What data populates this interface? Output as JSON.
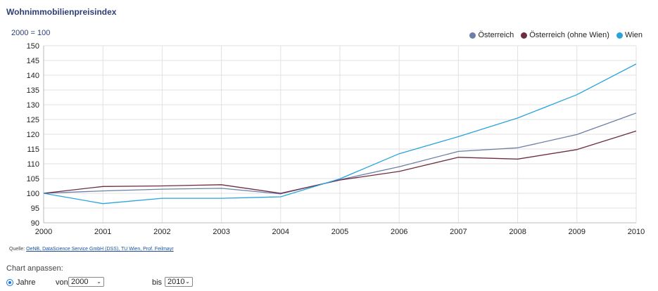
{
  "title": "Wohnimmobilienpreisindex",
  "unit_label": "2000 = 100",
  "colors": {
    "oesterreich": "#6b7fa8",
    "ohne_wien": "#6e2c43",
    "wien": "#29a3dc",
    "grid": "#e2e2e2",
    "axis": "#cccccc"
  },
  "chart_data": {
    "type": "line",
    "x": [
      "2000",
      "2001",
      "2002",
      "2003",
      "2004",
      "2005",
      "2006",
      "2007",
      "2008",
      "2009",
      "2010"
    ],
    "series": [
      {
        "name": "Österreich",
        "color": "#6b7fa8",
        "values": [
          100,
          100.8,
          101.4,
          101.7,
          99.8,
          104.6,
          109.0,
          114.2,
          115.4,
          119.9,
          127.2
        ]
      },
      {
        "name": "Österreich (ohne Wien)",
        "color": "#6e2c43",
        "values": [
          100,
          102.3,
          102.5,
          102.9,
          100.0,
          104.5,
          107.4,
          112.2,
          111.6,
          114.8,
          121.1
        ]
      },
      {
        "name": "Wien",
        "color": "#29a3dc",
        "values": [
          100,
          96.5,
          98.3,
          98.3,
          98.8,
          104.9,
          113.4,
          119.2,
          125.5,
          133.4,
          143.8
        ]
      }
    ],
    "y_ticks": [
      "150",
      "145",
      "140",
      "135",
      "130",
      "125",
      "120",
      "115",
      "110",
      "105",
      "100",
      "95",
      "90"
    ],
    "ylim": [
      90,
      150
    ],
    "grid": true,
    "legend_position": "top-right"
  },
  "source": {
    "prefix": "Quelle: ",
    "text": "OeNB, DataScience Service GmbH (DSS), TU Wien, Prof. Feilmayr"
  },
  "controls": {
    "heading": "Chart anpassen:",
    "radio_label": "Jahre",
    "from_label": "von",
    "from_value": "2000",
    "to_label": "bis",
    "to_value": "2010"
  }
}
